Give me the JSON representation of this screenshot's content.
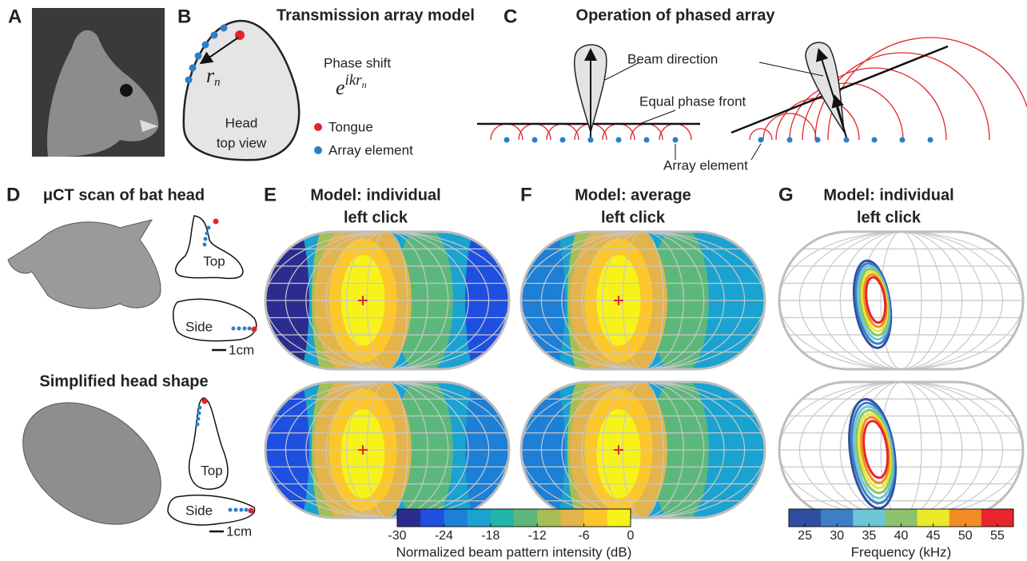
{
  "panels": {
    "a": {
      "label": "A"
    },
    "b": {
      "label": "B",
      "title": "Transmission array model",
      "distance_symbol": "r",
      "distance_subscript": "n",
      "phase_shift": "Phase shift",
      "phase_base": "e",
      "phase_exponent": "ikr",
      "phase_exponent_subscript": "n",
      "head_label": [
        "Head",
        "top view"
      ],
      "legend": {
        "tongue": "Tongue",
        "array_element": "Array element"
      }
    },
    "c": {
      "label": "C",
      "title": "Operation of phased array",
      "beam_direction": "Beam direction",
      "equal_phase_front": "Equal phase front",
      "array_element": "Array element"
    },
    "d": {
      "label": "D",
      "rows": [
        {
          "title": "μCT scan of bat head",
          "top": "Top",
          "side": "Side",
          "scale": "1cm"
        },
        {
          "title": "Simplified head shape",
          "top": "Top",
          "side": "Side",
          "scale": "1cm"
        }
      ]
    },
    "e": {
      "label": "E",
      "title": [
        "Model: individual",
        "left click"
      ]
    },
    "f": {
      "label": "F",
      "title": [
        "Model: average",
        "left click"
      ]
    },
    "g": {
      "label": "G",
      "title": [
        "Model: individual",
        "left click"
      ]
    }
  },
  "colorbars": [
    {
      "label": "Normalized beam pattern intensity (dB)",
      "lim": [
        -30,
        0
      ],
      "ticks": [
        -30,
        -24,
        -18,
        -12,
        -6,
        0
      ],
      "colors": [
        "#2b2c8f",
        "#1f4fe0",
        "#1d7fd6",
        "#1aa3d0",
        "#21b6a8",
        "#5cb87a",
        "#a6be56",
        "#e3b44c",
        "#fdc72b",
        "#f7f31a"
      ]
    },
    {
      "label": "Frequency (kHz)",
      "lim": [
        22.5,
        57.5
      ],
      "ticks": [
        25,
        30,
        35,
        40,
        45,
        50,
        55
      ],
      "colors": [
        "#2e4fa0",
        "#3d7fc6",
        "#6cc6d6",
        "#8cc26b",
        "#eaea2a",
        "#f28c26",
        "#e8262b"
      ]
    }
  ]
}
